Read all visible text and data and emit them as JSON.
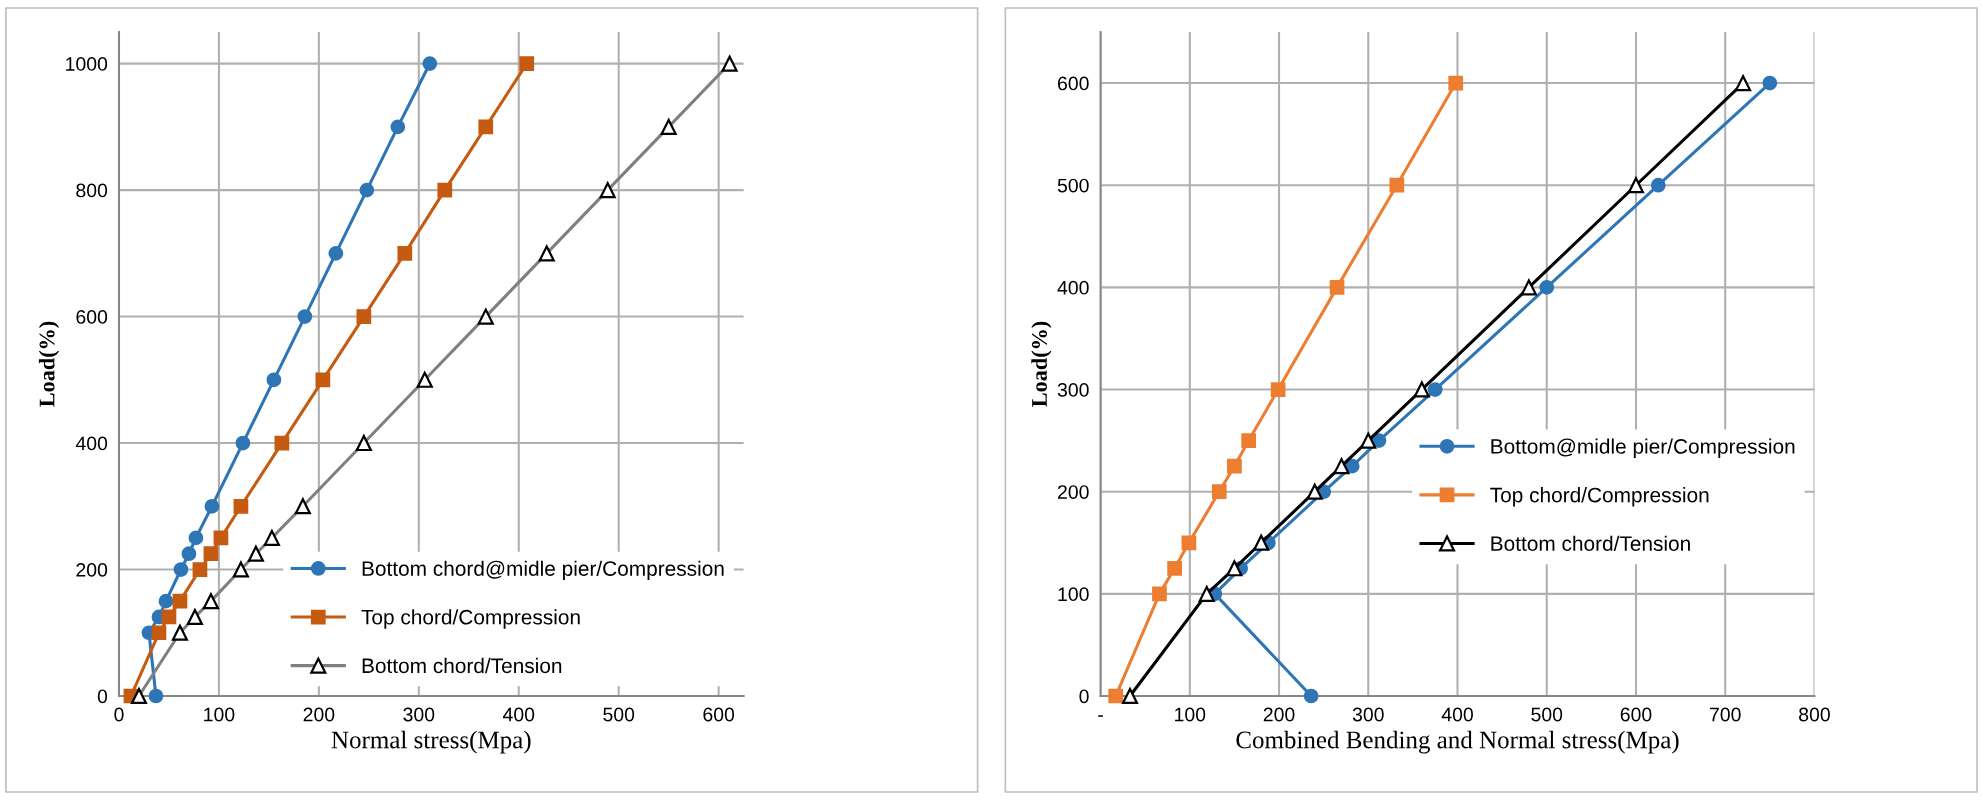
{
  "chart_data": [
    {
      "type": "line",
      "xlabel": "Normal stress(Mpa)",
      "ylabel": "Load(%)",
      "xlim": [
        0,
        625
      ],
      "xticks": [
        0,
        100,
        200,
        300,
        400,
        500,
        600
      ],
      "ylim": [
        0,
        1050
      ],
      "yticks": [
        0,
        200,
        400,
        600,
        800,
        1000
      ],
      "grid": true,
      "legend": "bottom right",
      "series": [
        {
          "name": "Bottom chord@midle pier/Compression",
          "color": "#2e75b6",
          "marker": "circle",
          "x": [
            37,
            30,
            40,
            47,
            62,
            70,
            77,
            93,
            124,
            155,
            186,
            217,
            248,
            279,
            311
          ],
          "values": [
            0,
            100,
            125,
            150,
            200,
            225,
            250,
            300,
            400,
            500,
            600,
            700,
            800,
            900,
            1000
          ]
        },
        {
          "name": "Top chord/Compression",
          "color": "#c55a11",
          "marker": "square",
          "x": [
            12,
            40,
            50,
            61,
            81,
            92,
            102,
            122,
            163,
            204,
            245,
            286,
            326,
            367,
            408
          ],
          "values": [
            0,
            100,
            125,
            150,
            200,
            225,
            250,
            300,
            400,
            500,
            600,
            700,
            800,
            900,
            1000
          ]
        },
        {
          "name": "Bottom chord/Tension",
          "color": "#7f7f7f",
          "marker": "triangle",
          "x": [
            20,
            61,
            76,
            92,
            122,
            137,
            153,
            184,
            245,
            306,
            367,
            428,
            489,
            550,
            611
          ],
          "values": [
            0,
            100,
            125,
            150,
            200,
            225,
            250,
            300,
            400,
            500,
            600,
            700,
            800,
            900,
            1000
          ]
        }
      ]
    },
    {
      "type": "line",
      "xlabel": "Combined Bending and Normal stress(Mpa)",
      "ylabel": "Load(%)",
      "xlim": [
        0,
        800
      ],
      "xticks": [
        {
          "value": 0,
          "label": "-"
        },
        100,
        200,
        300,
        400,
        500,
        600,
        700,
        800
      ],
      "ylim": [
        0,
        650
      ],
      "yticks": [
        0,
        100,
        200,
        300,
        400,
        500,
        600
      ],
      "grid": true,
      "legend": "right",
      "series": [
        {
          "name": "Bottom@midle pier/Compression",
          "color": "#2e75b6",
          "marker": "circle",
          "x": [
            236,
            128,
            157,
            188,
            250,
            282,
            312,
            375,
            500,
            625,
            750
          ],
          "values": [
            0,
            100,
            125,
            150,
            200,
            225,
            250,
            300,
            400,
            500,
            600
          ]
        },
        {
          "name": "Top chord/Compression",
          "color": "#ed7d31",
          "marker": "square",
          "x": [
            17,
            66,
            83,
            99,
            133,
            150,
            166,
            199,
            265,
            332,
            398
          ],
          "values": [
            0,
            100,
            125,
            150,
            200,
            225,
            250,
            300,
            400,
            500,
            600
          ]
        },
        {
          "name": "Bottom chord/Tension",
          "color": "#000000",
          "marker": "triangle",
          "x": [
            33,
            119,
            150,
            180,
            240,
            270,
            300,
            360,
            480,
            600,
            720
          ],
          "values": [
            0,
            100,
            125,
            150,
            200,
            225,
            250,
            300,
            400,
            500,
            600
          ]
        }
      ]
    }
  ]
}
